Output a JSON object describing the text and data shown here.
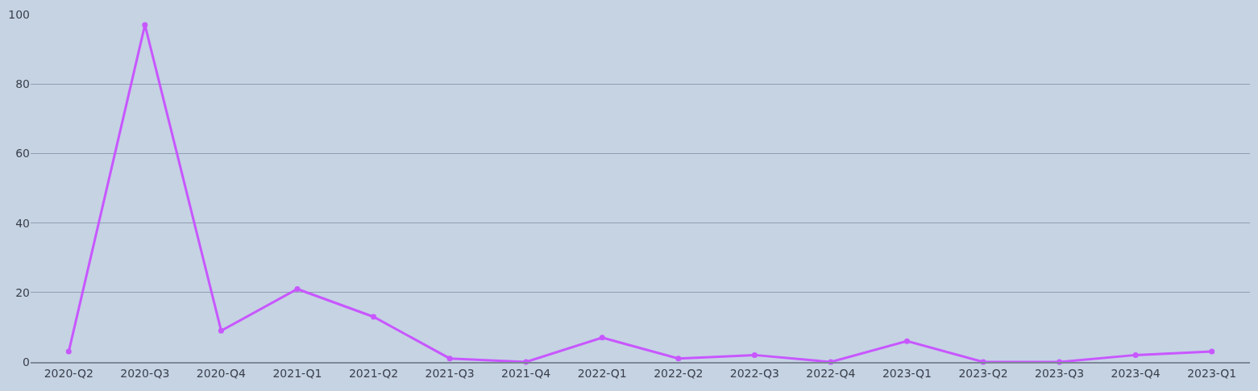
{
  "chart_data": {
    "type": "line",
    "categories": [
      "2020-Q2",
      "2020-Q3",
      "2020-Q4",
      "2021-Q1",
      "2021-Q2",
      "2021-Q3",
      "2021-Q4",
      "2022-Q1",
      "2022-Q2",
      "2022-Q3",
      "2022-Q4",
      "2023-Q1",
      "2023-Q2",
      "2023-Q3",
      "2023-Q4",
      "2023-Q1"
    ],
    "series": [
      {
        "color": "#c857ff",
        "values": [
          3,
          97,
          9,
          21,
          13,
          1,
          0,
          7,
          1,
          2,
          0,
          6,
          0,
          0,
          2,
          3
        ]
      }
    ],
    "ylim": [
      0,
      100
    ],
    "yticks": [
      0,
      20,
      40,
      60,
      80,
      100
    ],
    "grid": "y",
    "marker": "circle",
    "line_style": "solid"
  }
}
